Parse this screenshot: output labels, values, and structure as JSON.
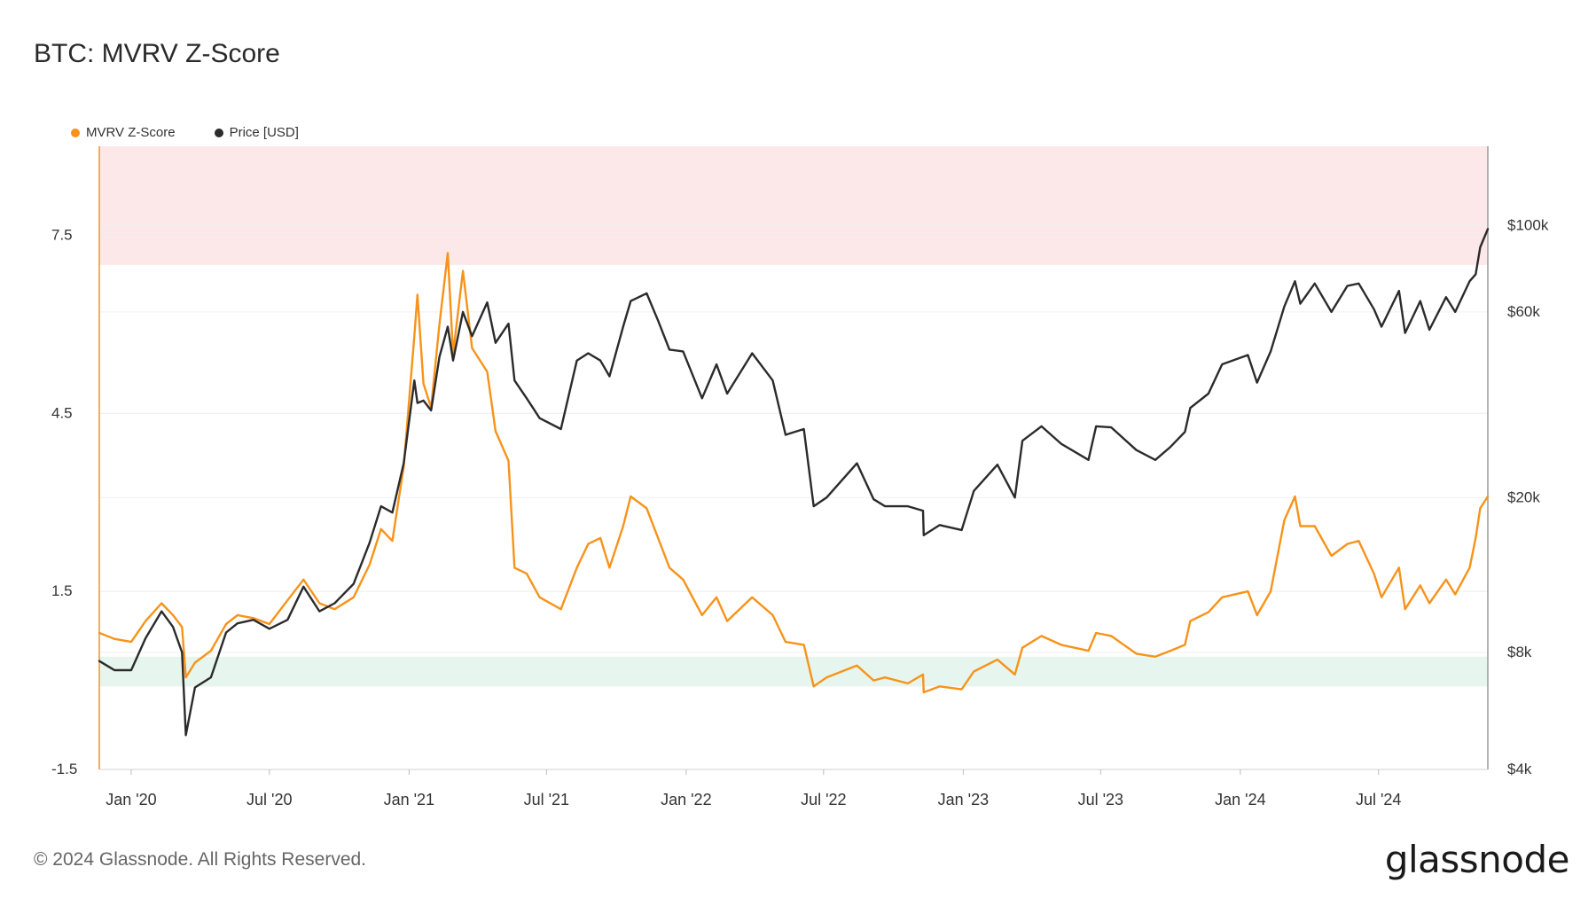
{
  "title": "BTC: MVRV Z-Score",
  "legend": {
    "mvrv_label": "MVRV Z-Score",
    "price_label": "Price [USD]"
  },
  "colors": {
    "mvrv": "#f7931a",
    "price": "#2b2b2b",
    "top_band": "#fde8e9",
    "bottom_band": "#e6f6ef"
  },
  "footer": {
    "copyright": "© 2024 Glassnode. All Rights Reserved.",
    "logo_text": "glassnode"
  },
  "chart_data": {
    "type": "line",
    "title": "BTC: MVRV Z-Score",
    "x_ticks": [
      "Jan '20",
      "Jul '20",
      "Jan '21",
      "Jul '21",
      "Jan '22",
      "Jul '22",
      "Jan '23",
      "Jul '23",
      "Jan '24",
      "Jul '24"
    ],
    "x_tick_dates": [
      "2020-01-01",
      "2020-07-01",
      "2021-01-01",
      "2021-07-01",
      "2022-01-01",
      "2022-07-01",
      "2023-01-01",
      "2023-07-01",
      "2024-01-01",
      "2024-07-01"
    ],
    "xlim": [
      "2019-11-20",
      "2024-11-22"
    ],
    "left_axis": {
      "series": "MVRV Z-Score",
      "ticks": [
        -1.5,
        1.5,
        4.5,
        7.5
      ],
      "tick_labels": [
        "-1.5",
        "1.5",
        "4.5",
        "7.5"
      ],
      "ylim": [
        -1.5,
        9.0
      ]
    },
    "right_axis": {
      "series": "Price [USD]",
      "scale": "log",
      "ticks": [
        4000,
        8000,
        20000,
        60000,
        100000
      ],
      "tick_labels": [
        "$4k",
        "$8k",
        "$20k",
        "$60k",
        "$100k"
      ],
      "ylim": [
        4000,
        160000
      ]
    },
    "bands": [
      {
        "axis": "left",
        "from": 7.0,
        "to": 9.0,
        "color": "#fde8e9"
      },
      {
        "axis": "left",
        "from": -0.1,
        "to": 0.4,
        "color": "#e6f6ef"
      }
    ],
    "grid": true,
    "legend_position": "top-left",
    "series": [
      {
        "name": "MVRV Z-Score",
        "axis": "left",
        "color": "#f7931a",
        "points": [
          [
            "2019-11-20",
            0.8
          ],
          [
            "2019-12-10",
            0.7
          ],
          [
            "2020-01-01",
            0.65
          ],
          [
            "2020-01-20",
            1.0
          ],
          [
            "2020-02-10",
            1.3
          ],
          [
            "2020-02-25",
            1.1
          ],
          [
            "2020-03-08",
            0.9
          ],
          [
            "2020-03-13",
            0.05
          ],
          [
            "2020-03-25",
            0.3
          ],
          [
            "2020-04-15",
            0.5
          ],
          [
            "2020-05-05",
            0.95
          ],
          [
            "2020-05-20",
            1.1
          ],
          [
            "2020-06-10",
            1.05
          ],
          [
            "2020-07-01",
            0.95
          ],
          [
            "2020-07-25",
            1.35
          ],
          [
            "2020-08-15",
            1.7
          ],
          [
            "2020-09-05",
            1.3
          ],
          [
            "2020-09-25",
            1.2
          ],
          [
            "2020-10-20",
            1.4
          ],
          [
            "2020-11-10",
            1.95
          ],
          [
            "2020-11-25",
            2.55
          ],
          [
            "2020-12-10",
            2.35
          ],
          [
            "2020-12-25",
            3.6
          ],
          [
            "2021-01-08",
            5.8
          ],
          [
            "2021-01-12",
            6.5
          ],
          [
            "2021-01-20",
            5.0
          ],
          [
            "2021-01-30",
            4.6
          ],
          [
            "2021-02-10",
            6.0
          ],
          [
            "2021-02-21",
            7.2
          ],
          [
            "2021-02-28",
            5.5
          ],
          [
            "2021-03-13",
            6.9
          ],
          [
            "2021-03-25",
            5.6
          ],
          [
            "2021-04-14",
            5.2
          ],
          [
            "2021-04-25",
            4.2
          ],
          [
            "2021-05-12",
            3.7
          ],
          [
            "2021-05-20",
            1.9
          ],
          [
            "2021-06-05",
            1.8
          ],
          [
            "2021-06-22",
            1.4
          ],
          [
            "2021-07-20",
            1.2
          ],
          [
            "2021-08-10",
            1.9
          ],
          [
            "2021-08-25",
            2.3
          ],
          [
            "2021-09-10",
            2.4
          ],
          [
            "2021-09-22",
            1.9
          ],
          [
            "2021-10-10",
            2.6
          ],
          [
            "2021-10-20",
            3.1
          ],
          [
            "2021-11-10",
            2.9
          ],
          [
            "2021-11-25",
            2.4
          ],
          [
            "2021-12-10",
            1.9
          ],
          [
            "2021-12-28",
            1.7
          ],
          [
            "2022-01-22",
            1.1
          ],
          [
            "2022-02-10",
            1.4
          ],
          [
            "2022-02-24",
            1.0
          ],
          [
            "2022-03-29",
            1.4
          ],
          [
            "2022-04-25",
            1.1
          ],
          [
            "2022-05-12",
            0.65
          ],
          [
            "2022-06-05",
            0.6
          ],
          [
            "2022-06-18",
            -0.1
          ],
          [
            "2022-07-05",
            0.05
          ],
          [
            "2022-08-14",
            0.25
          ],
          [
            "2022-09-05",
            0.0
          ],
          [
            "2022-09-20",
            0.05
          ],
          [
            "2022-10-20",
            -0.05
          ],
          [
            "2022-11-09",
            0.1
          ],
          [
            "2022-11-10",
            -0.2
          ],
          [
            "2022-12-01",
            -0.1
          ],
          [
            "2022-12-30",
            -0.15
          ],
          [
            "2023-01-15",
            0.15
          ],
          [
            "2023-02-15",
            0.35
          ],
          [
            "2023-03-10",
            0.1
          ],
          [
            "2023-03-20",
            0.55
          ],
          [
            "2023-04-14",
            0.75
          ],
          [
            "2023-05-10",
            0.6
          ],
          [
            "2023-06-15",
            0.5
          ],
          [
            "2023-06-25",
            0.8
          ],
          [
            "2023-07-15",
            0.75
          ],
          [
            "2023-08-17",
            0.45
          ],
          [
            "2023-09-11",
            0.4
          ],
          [
            "2023-10-01",
            0.5
          ],
          [
            "2023-10-20",
            0.6
          ],
          [
            "2023-10-27",
            1.0
          ],
          [
            "2023-11-20",
            1.15
          ],
          [
            "2023-12-08",
            1.4
          ],
          [
            "2024-01-11",
            1.5
          ],
          [
            "2024-01-23",
            1.1
          ],
          [
            "2024-02-10",
            1.5
          ],
          [
            "2024-02-28",
            2.7
          ],
          [
            "2024-03-13",
            3.1
          ],
          [
            "2024-03-20",
            2.6
          ],
          [
            "2024-04-08",
            2.6
          ],
          [
            "2024-04-30",
            2.1
          ],
          [
            "2024-05-21",
            2.3
          ],
          [
            "2024-06-05",
            2.35
          ],
          [
            "2024-06-25",
            1.8
          ],
          [
            "2024-07-05",
            1.4
          ],
          [
            "2024-07-28",
            1.9
          ],
          [
            "2024-08-05",
            1.2
          ],
          [
            "2024-08-25",
            1.6
          ],
          [
            "2024-09-06",
            1.3
          ],
          [
            "2024-09-28",
            1.7
          ],
          [
            "2024-10-10",
            1.45
          ],
          [
            "2024-10-29",
            1.9
          ],
          [
            "2024-11-06",
            2.4
          ],
          [
            "2024-11-12",
            2.9
          ],
          [
            "2024-11-22",
            3.1
          ]
        ]
      },
      {
        "name": "Price [USD]",
        "axis": "right",
        "color": "#2b2b2b",
        "points": [
          [
            "2019-11-20",
            7600
          ],
          [
            "2019-12-10",
            7200
          ],
          [
            "2020-01-01",
            7200
          ],
          [
            "2020-01-20",
            8700
          ],
          [
            "2020-02-10",
            10200
          ],
          [
            "2020-02-25",
            9300
          ],
          [
            "2020-03-08",
            8000
          ],
          [
            "2020-03-13",
            4900
          ],
          [
            "2020-03-25",
            6500
          ],
          [
            "2020-04-15",
            6900
          ],
          [
            "2020-05-05",
            9000
          ],
          [
            "2020-05-20",
            9500
          ],
          [
            "2020-06-10",
            9700
          ],
          [
            "2020-07-01",
            9200
          ],
          [
            "2020-07-25",
            9700
          ],
          [
            "2020-08-15",
            11800
          ],
          [
            "2020-09-05",
            10200
          ],
          [
            "2020-09-25",
            10700
          ],
          [
            "2020-10-20",
            12000
          ],
          [
            "2020-11-10",
            15300
          ],
          [
            "2020-11-25",
            19000
          ],
          [
            "2020-12-10",
            18300
          ],
          [
            "2020-12-25",
            24500
          ],
          [
            "2021-01-08",
            40000
          ],
          [
            "2021-01-12",
            35000
          ],
          [
            "2021-01-20",
            35500
          ],
          [
            "2021-01-30",
            33500
          ],
          [
            "2021-02-10",
            46000
          ],
          [
            "2021-02-21",
            55000
          ],
          [
            "2021-02-28",
            45000
          ],
          [
            "2021-03-13",
            60000
          ],
          [
            "2021-03-25",
            52000
          ],
          [
            "2021-04-14",
            63500
          ],
          [
            "2021-04-25",
            50000
          ],
          [
            "2021-05-12",
            56000
          ],
          [
            "2021-05-20",
            40000
          ],
          [
            "2021-06-05",
            36000
          ],
          [
            "2021-06-22",
            32000
          ],
          [
            "2021-07-20",
            30000
          ],
          [
            "2021-08-10",
            45000
          ],
          [
            "2021-08-25",
            47000
          ],
          [
            "2021-09-10",
            45000
          ],
          [
            "2021-09-22",
            41000
          ],
          [
            "2021-10-10",
            55000
          ],
          [
            "2021-10-20",
            64000
          ],
          [
            "2021-11-10",
            67000
          ],
          [
            "2021-11-25",
            57000
          ],
          [
            "2021-12-10",
            48000
          ],
          [
            "2021-12-28",
            47500
          ],
          [
            "2022-01-22",
            36000
          ],
          [
            "2022-02-10",
            44000
          ],
          [
            "2022-02-24",
            37000
          ],
          [
            "2022-03-29",
            47000
          ],
          [
            "2022-04-25",
            40000
          ],
          [
            "2022-05-12",
            29000
          ],
          [
            "2022-06-05",
            30000
          ],
          [
            "2022-06-18",
            19000
          ],
          [
            "2022-07-05",
            20000
          ],
          [
            "2022-08-14",
            24500
          ],
          [
            "2022-09-05",
            19800
          ],
          [
            "2022-09-20",
            19000
          ],
          [
            "2022-10-20",
            19000
          ],
          [
            "2022-11-09",
            18500
          ],
          [
            "2022-11-10",
            16000
          ],
          [
            "2022-12-01",
            17000
          ],
          [
            "2022-12-30",
            16500
          ],
          [
            "2023-01-15",
            20800
          ],
          [
            "2023-02-15",
            24300
          ],
          [
            "2023-03-10",
            20000
          ],
          [
            "2023-03-20",
            28000
          ],
          [
            "2023-04-14",
            30500
          ],
          [
            "2023-05-10",
            27500
          ],
          [
            "2023-06-15",
            25000
          ],
          [
            "2023-06-25",
            30500
          ],
          [
            "2023-07-15",
            30300
          ],
          [
            "2023-08-17",
            26500
          ],
          [
            "2023-09-11",
            25000
          ],
          [
            "2023-10-01",
            27000
          ],
          [
            "2023-10-20",
            29500
          ],
          [
            "2023-10-27",
            34000
          ],
          [
            "2023-11-20",
            37000
          ],
          [
            "2023-12-08",
            44000
          ],
          [
            "2024-01-11",
            46500
          ],
          [
            "2024-01-23",
            39500
          ],
          [
            "2024-02-10",
            47500
          ],
          [
            "2024-02-28",
            62000
          ],
          [
            "2024-03-13",
            72000
          ],
          [
            "2024-03-20",
            63000
          ],
          [
            "2024-04-08",
            71000
          ],
          [
            "2024-04-30",
            60000
          ],
          [
            "2024-05-21",
            70000
          ],
          [
            "2024-06-05",
            71000
          ],
          [
            "2024-06-25",
            61000
          ],
          [
            "2024-07-05",
            55000
          ],
          [
            "2024-07-28",
            68000
          ],
          [
            "2024-08-05",
            53000
          ],
          [
            "2024-08-25",
            64000
          ],
          [
            "2024-09-06",
            54000
          ],
          [
            "2024-09-28",
            65500
          ],
          [
            "2024-10-10",
            60000
          ],
          [
            "2024-10-29",
            72000
          ],
          [
            "2024-11-06",
            75000
          ],
          [
            "2024-11-12",
            88000
          ],
          [
            "2024-11-22",
            98000
          ]
        ]
      }
    ]
  }
}
